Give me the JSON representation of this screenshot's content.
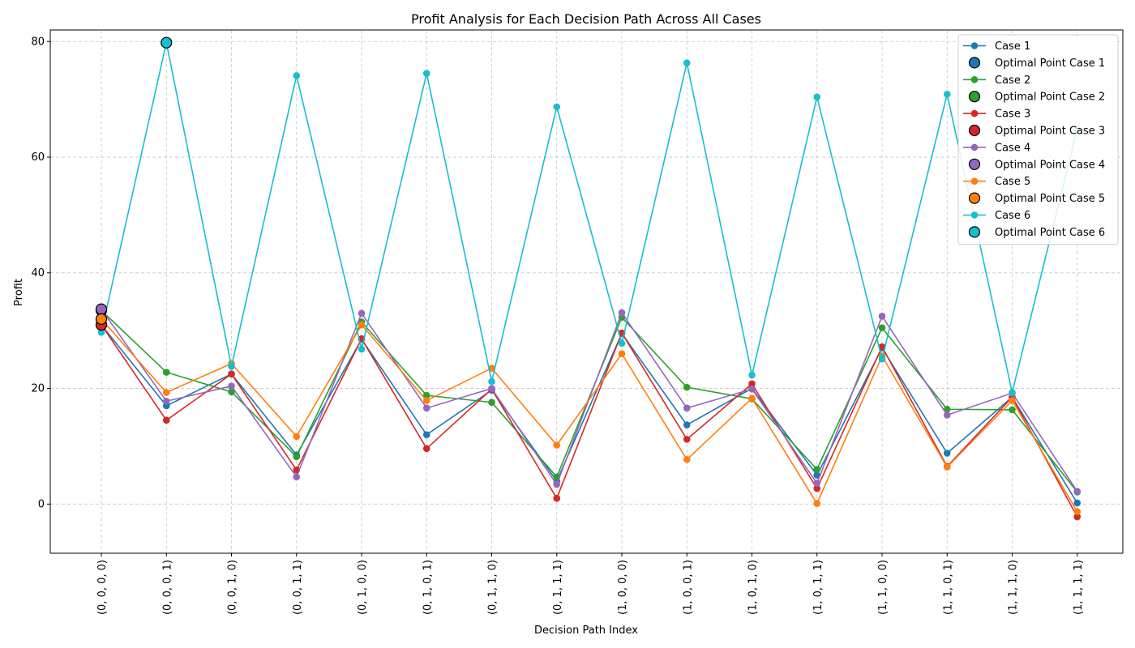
{
  "chart_data": {
    "type": "line",
    "title": "Profit Analysis for Each Decision Path Across All Cases",
    "xlabel": "Decision Path Index",
    "ylabel": "Profit",
    "ylim": [
      -8.5,
      82
    ],
    "yticks": [
      0,
      20,
      40,
      60,
      80
    ],
    "grid": true,
    "legend_position": "top-right",
    "categories": [
      "(0, 0, 0, 0)",
      "(0, 0, 0, 1)",
      "(0, 0, 1, 0)",
      "(0, 0, 1, 1)",
      "(0, 1, 0, 0)",
      "(0, 1, 0, 1)",
      "(0, 1, 1, 0)",
      "(0, 1, 1, 1)",
      "(1, 0, 0, 0)",
      "(1, 0, 0, 1)",
      "(1, 0, 1, 0)",
      "(1, 0, 1, 1)",
      "(1, 1, 0, 0)",
      "(1, 1, 0, 1)",
      "(1, 1, 1, 0)",
      "(1, 1, 1, 1)"
    ],
    "series": [
      {
        "name": "Case 1",
        "optimal_label": "Optimal Point Case 1",
        "color": "#1f77b4",
        "optimal_index": 0,
        "values": [
          31.0,
          17.0,
          22.5,
          8.5,
          28.5,
          12.0,
          19.7,
          4.0,
          29.5,
          13.7,
          20.0,
          5.0,
          27.0,
          8.8,
          18.5,
          0.2
        ]
      },
      {
        "name": "Case 2",
        "optimal_label": "Optimal Point Case 2",
        "color": "#2ca02c",
        "optimal_index": 0,
        "values": [
          33.5,
          22.8,
          19.4,
          8.2,
          31.5,
          18.8,
          17.6,
          4.7,
          32.3,
          20.2,
          18.2,
          6.0,
          30.5,
          16.4,
          16.3,
          2.1
        ]
      },
      {
        "name": "Case 3",
        "optimal_label": "Optimal Point Case 3",
        "color": "#d62728",
        "optimal_index": 0,
        "values": [
          31.0,
          14.5,
          22.5,
          5.9,
          28.6,
          9.6,
          19.9,
          1.0,
          29.6,
          11.2,
          20.8,
          2.7,
          27.2,
          6.5,
          18.5,
          -2.2
        ]
      },
      {
        "name": "Case 4",
        "optimal_label": "Optimal Point Case 4",
        "color": "#9467bd",
        "optimal_index": 0,
        "values": [
          33.7,
          17.8,
          20.4,
          4.7,
          33.0,
          16.6,
          20.0,
          3.4,
          33.1,
          16.6,
          19.9,
          3.6,
          32.5,
          15.4,
          19.2,
          2.2
        ]
      },
      {
        "name": "Case 5",
        "optimal_label": "Optimal Point Case 5",
        "color": "#ff7f0e",
        "optimal_index": 0,
        "values": [
          32.0,
          19.3,
          24.3,
          11.7,
          31.0,
          17.9,
          23.5,
          10.2,
          26.0,
          7.7,
          18.3,
          0.1,
          25.6,
          6.4,
          17.9,
          -1.3
        ]
      },
      {
        "name": "Case 6",
        "optimal_label": "Optimal Point Case 6",
        "color": "#17becf",
        "optimal_index": 1,
        "values": [
          29.7,
          79.8,
          23.8,
          74.1,
          26.8,
          74.5,
          21.2,
          68.7,
          27.8,
          76.3,
          22.3,
          70.4,
          25.1,
          70.9,
          19.3,
          64.9
        ]
      }
    ]
  }
}
